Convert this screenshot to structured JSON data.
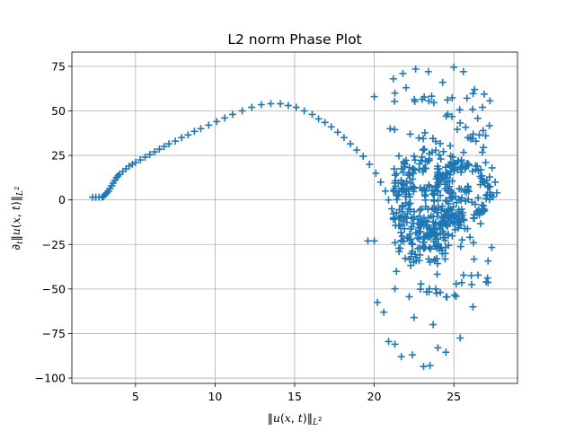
{
  "chart_data": {
    "type": "scatter",
    "title": "L2 norm Phase Plot",
    "xlabel": "‖u(x, t)‖L²",
    "ylabel": "∂t‖u(x, t)‖L²",
    "xlim": [
      1.0,
      29.0
    ],
    "ylim": [
      -103,
      83
    ],
    "xticks": [
      5,
      10,
      15,
      20,
      25
    ],
    "yticks": [
      -100,
      -75,
      -50,
      -25,
      0,
      25,
      50,
      75
    ],
    "xtick_labels": [
      "5",
      "10",
      "15",
      "20",
      "25"
    ],
    "ytick_labels": [
      "−100",
      "−75",
      "−50",
      "−25",
      "0",
      "25",
      "50",
      "75"
    ],
    "grid": true,
    "marker": "+",
    "color": "#1f77b4",
    "series": [
      {
        "points": [
          [
            2.3,
            1.5
          ],
          [
            2.5,
            1.5
          ],
          [
            2.7,
            1.5
          ],
          [
            2.9,
            1.6
          ],
          [
            3.0,
            2.0
          ],
          [
            3.1,
            3.0
          ],
          [
            3.2,
            4.0
          ],
          [
            3.3,
            5.0
          ],
          [
            3.4,
            6.5
          ],
          [
            3.5,
            8.0
          ],
          [
            3.6,
            9.5
          ],
          [
            3.7,
            11.0
          ],
          [
            3.8,
            12.5
          ],
          [
            3.9,
            13.5
          ],
          [
            4.0,
            14.5
          ],
          [
            4.2,
            16.0
          ],
          [
            4.4,
            17.5
          ],
          [
            4.6,
            19.0
          ],
          [
            4.8,
            20.0
          ],
          [
            5.0,
            21.0
          ],
          [
            5.3,
            22.5
          ],
          [
            5.6,
            24.0
          ],
          [
            5.9,
            25.5
          ],
          [
            6.2,
            27.0
          ],
          [
            6.5,
            28.5
          ],
          [
            6.8,
            30.0
          ],
          [
            7.1,
            31.5
          ],
          [
            7.5,
            33.0
          ],
          [
            7.9,
            35.0
          ],
          [
            8.3,
            36.5
          ],
          [
            8.7,
            38.5
          ],
          [
            9.1,
            40.0
          ],
          [
            9.6,
            42.0
          ],
          [
            10.1,
            44.0
          ],
          [
            10.6,
            46.0
          ],
          [
            11.1,
            48.0
          ],
          [
            11.7,
            50.0
          ],
          [
            12.3,
            52.0
          ],
          [
            12.9,
            53.5
          ],
          [
            13.5,
            54.0
          ],
          [
            14.1,
            54.0
          ],
          [
            14.6,
            53.0
          ],
          [
            15.1,
            52.0
          ],
          [
            15.6,
            50.0
          ],
          [
            16.1,
            48.0
          ],
          [
            16.5,
            45.5
          ],
          [
            16.9,
            43.5
          ],
          [
            17.3,
            41.0
          ],
          [
            17.7,
            38.0
          ],
          [
            18.1,
            35.0
          ],
          [
            18.5,
            31.5
          ],
          [
            18.9,
            28.0
          ],
          [
            19.3,
            24.5
          ],
          [
            19.7,
            20.0
          ],
          [
            20.1,
            15.0
          ],
          [
            20.4,
            10.0
          ],
          [
            20.7,
            5.0
          ],
          [
            20.9,
            0.0
          ],
          [
            21.1,
            -5.0
          ],
          [
            21.2,
            -10.0
          ],
          [
            19.6,
            -23.0
          ],
          [
            20.0,
            -23.0
          ],
          [
            20.2,
            -57.5
          ],
          [
            20.6,
            -63.0
          ],
          [
            20.9,
            -79.5
          ],
          [
            21.3,
            -81.0
          ],
          [
            21.7,
            -88.0
          ],
          [
            22.4,
            -87.0
          ],
          [
            23.1,
            -93.5
          ],
          [
            23.5,
            -93.0
          ],
          [
            24.0,
            -83.0
          ],
          [
            24.5,
            -85.5
          ],
          [
            25.4,
            -77.5
          ],
          [
            26.2,
            -60.0
          ],
          [
            22.5,
            -66.0
          ],
          [
            23.7,
            -70.0
          ],
          [
            20.0,
            58.0
          ],
          [
            21.2,
            68.0
          ],
          [
            21.8,
            71.0
          ],
          [
            22.6,
            73.5
          ],
          [
            23.4,
            72.0
          ],
          [
            24.3,
            66.0
          ],
          [
            25.0,
            74.5
          ],
          [
            25.6,
            72.0
          ],
          [
            26.3,
            62.0
          ],
          [
            26.8,
            52.0
          ],
          [
            21.3,
            60.0
          ],
          [
            22.0,
            63.0
          ],
          [
            21.0,
            40.0
          ],
          [
            27.0,
            21.0
          ],
          [
            27.4,
            18.0
          ],
          [
            27.6,
            10.0
          ],
          [
            27.7,
            4.0
          ],
          [
            27.0,
            36.0
          ],
          [
            26.6,
            36.5
          ]
        ],
        "cloud": {
          "center": [
            23.5,
            0.0
          ],
          "x_range": [
            21.2,
            27.5
          ],
          "y_range": [
            -55,
            60
          ],
          "count": 560
        }
      }
    ]
  }
}
